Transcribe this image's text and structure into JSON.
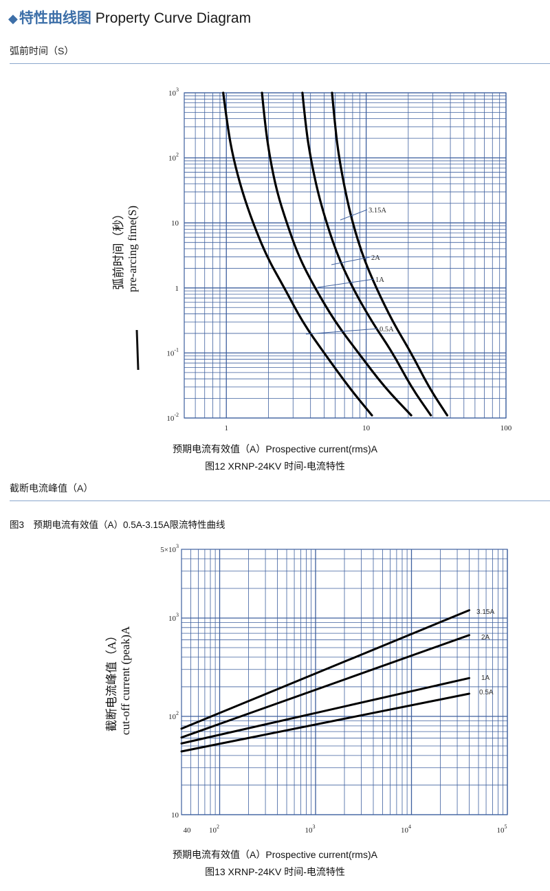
{
  "header": {
    "diamond": "◆",
    "title_cn": "特性曲线图",
    "title_en": "Property Curve Diagram"
  },
  "section1": {
    "label": "弧前时间（S）"
  },
  "section2": {
    "label": "截断电流峰值（A）"
  },
  "fig3_caption": "图3　预期电流有效值（A）0.5A-3.15A限流特性曲线",
  "colors": {
    "accent": "#3d6fa8",
    "rule": "#8aa7cc",
    "grid": "#3d5f9e",
    "curve": "#000000"
  },
  "chart_data": [
    {
      "type": "line",
      "caption_axis": "预期电流有效值（A）Prospective current(rms)A",
      "caption_fig": "图12 XRNP-24KV 时间-电流特性",
      "ylabel_cn": "弧前时间（秒）",
      "ylabel_en": "pre-arcing fime(S)",
      "xscale": "log",
      "yscale": "log",
      "xlim": [
        0.5,
        100
      ],
      "ylim": [
        0.01,
        1000
      ],
      "grid": true,
      "x_ticks": [
        {
          "value": 1,
          "label": "1"
        },
        {
          "value": 10,
          "label": "10"
        },
        {
          "value": 100,
          "label": "100"
        }
      ],
      "y_ticks": [
        {
          "value": 1000,
          "base": "10",
          "exp": "3"
        },
        {
          "value": 100,
          "base": "10",
          "exp": "2"
        },
        {
          "value": 10,
          "base": "10",
          "exp": ""
        },
        {
          "value": 1,
          "base": "1",
          "exp": ""
        },
        {
          "value": 0.1,
          "base": "10",
          "exp": "-1"
        },
        {
          "value": 0.01,
          "base": "10",
          "exp": "-2"
        }
      ],
      "series": [
        {
          "name": "0.5A",
          "x": [
            0.95,
            1.02,
            1.12,
            1.3,
            1.55,
            1.95,
            2.6,
            3.5,
            5.0,
            7.5,
            11.0
          ],
          "y": [
            1000,
            300,
            100,
            30,
            10,
            3,
            1,
            0.3,
            0.1,
            0.03,
            0.011
          ]
        },
        {
          "name": "1A",
          "x": [
            1.8,
            1.9,
            2.05,
            2.3,
            2.7,
            3.3,
            4.3,
            6.0,
            8.8,
            13.5,
            21.0
          ],
          "y": [
            1000,
            300,
            100,
            30,
            10,
            3,
            1,
            0.3,
            0.1,
            0.03,
            0.011
          ]
        },
        {
          "name": "2A",
          "x": [
            3.5,
            3.7,
            4.0,
            4.5,
            5.2,
            6.3,
            8.0,
            11.0,
            15.5,
            21.0,
            29.0
          ],
          "y": [
            1000,
            300,
            100,
            30,
            10,
            3,
            1,
            0.3,
            0.1,
            0.03,
            0.011
          ]
        },
        {
          "name": "3.15A",
          "x": [
            5.7,
            6.0,
            6.4,
            7.1,
            8.0,
            9.5,
            11.8,
            15.5,
            21.0,
            28.0,
            38.0
          ],
          "y": [
            1000,
            300,
            100,
            30,
            10,
            3,
            1,
            0.3,
            0.1,
            0.03,
            0.011
          ]
        }
      ],
      "annotations": [
        {
          "text": "3.15A",
          "series": "3.15A"
        },
        {
          "text": "2A",
          "series": "2A"
        },
        {
          "text": "1A",
          "series": "1A"
        },
        {
          "text": "0.5A",
          "series": "0.5A"
        }
      ]
    },
    {
      "type": "line",
      "caption_axis": "预期电流有效值（A）Prospective current(rms)A",
      "caption_fig": "图13 XRNP-24KV 时间-电流特性",
      "ylabel_cn": "截断电流峰值（A）",
      "ylabel_en": "cut-off current (peak)A",
      "xscale": "log",
      "yscale": "log",
      "xlim": [
        40,
        100000
      ],
      "ylim": [
        10,
        5000
      ],
      "grid": true,
      "x_ticks": [
        {
          "value": 40,
          "base": "40",
          "exp": ""
        },
        {
          "value": 100,
          "base": "10",
          "exp": "2"
        },
        {
          "value": 1000,
          "base": "10",
          "exp": "3"
        },
        {
          "value": 10000,
          "base": "10",
          "exp": "4"
        },
        {
          "value": 100000,
          "base": "10",
          "exp": "5"
        }
      ],
      "y_ticks": [
        {
          "value": 5000,
          "base": "5×10",
          "exp": "3"
        },
        {
          "value": 1000,
          "base": "10",
          "exp": "3"
        },
        {
          "value": 100,
          "base": "10",
          "exp": "2"
        },
        {
          "value": 10,
          "base": "10",
          "exp": ""
        }
      ],
      "series": [
        {
          "name": "3.15A",
          "x": [
            40,
            40000
          ],
          "y": [
            75,
            1200
          ]
        },
        {
          "name": "2A",
          "x": [
            40,
            40000
          ],
          "y": [
            61,
            670
          ]
        },
        {
          "name": "1A",
          "x": [
            40,
            40000
          ],
          "y": [
            53,
            245
          ]
        },
        {
          "name": "0.5A",
          "x": [
            40,
            40000
          ],
          "y": [
            44,
            170
          ]
        }
      ],
      "annotations": [
        {
          "text": "3.15A",
          "series": "3.15A"
        },
        {
          "text": "2A",
          "series": "2A"
        },
        {
          "text": "1A",
          "series": "1A"
        },
        {
          "text": "0.5A",
          "series": "0.5A"
        }
      ]
    }
  ]
}
